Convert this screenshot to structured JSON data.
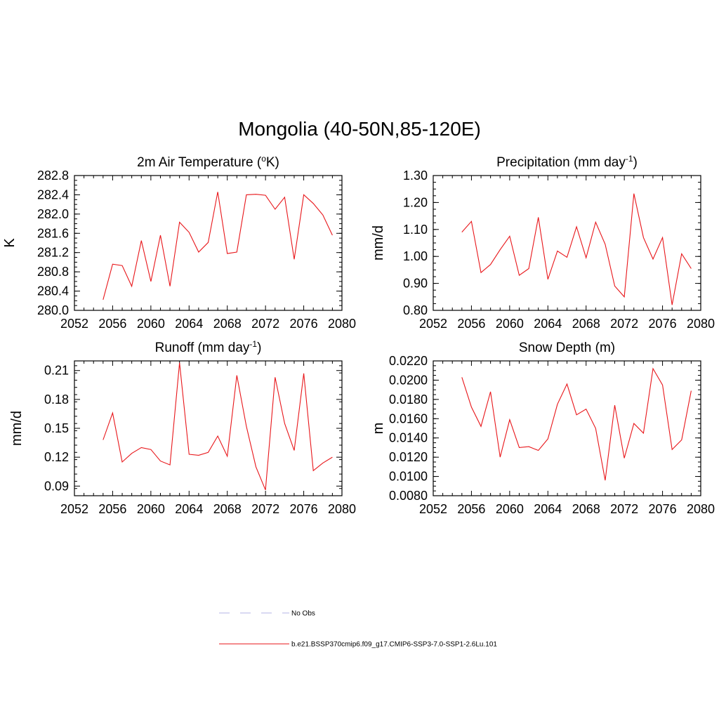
{
  "title": "Mongolia (40-50N,85-120E)",
  "chart_data": [
    {
      "type": "line",
      "title": "2m Air Temperature (°K)",
      "title_parts": {
        "pre": "2m Air Temperature (",
        "sup": "o",
        "post": "K)"
      },
      "ylabel": "K",
      "xlim": [
        2052,
        2080
      ],
      "ylim": [
        280.0,
        282.8
      ],
      "x_ticks": [
        "2052",
        "2056",
        "2060",
        "2064",
        "2068",
        "2072",
        "2076",
        "2080"
      ],
      "y_ticks": [
        "280.0",
        "280.4",
        "280.8",
        "281.2",
        "281.6",
        "282.0",
        "282.4",
        "282.8"
      ],
      "x": [
        2055,
        2056,
        2057,
        2058,
        2059,
        2060,
        2061,
        2062,
        2063,
        2064,
        2065,
        2066,
        2067,
        2068,
        2069,
        2070,
        2071,
        2072,
        2073,
        2074,
        2075,
        2076,
        2077,
        2078,
        2079
      ],
      "series": [
        {
          "color": "#e8161a",
          "values": [
            280.22,
            280.96,
            280.93,
            280.5,
            281.45,
            280.6,
            281.56,
            280.5,
            281.83,
            281.62,
            281.21,
            281.41,
            282.46,
            281.18,
            281.21,
            282.4,
            282.41,
            282.39,
            282.1,
            282.35,
            281.06,
            282.4,
            282.22,
            281.98,
            281.56
          ]
        }
      ]
    },
    {
      "type": "line",
      "title": "Precipitation (mm day-1)",
      "title_parts": {
        "pre": "Precipitation (mm day",
        "sup": "-1",
        "post": ")"
      },
      "ylabel": "mm/d",
      "xlim": [
        2052,
        2080
      ],
      "ylim": [
        0.8,
        1.3
      ],
      "x_ticks": [
        "2052",
        "2056",
        "2060",
        "2064",
        "2068",
        "2072",
        "2076",
        "2080"
      ],
      "y_ticks": [
        "0.80",
        "0.90",
        "1.00",
        "1.10",
        "1.20",
        "1.30"
      ],
      "x": [
        2055,
        2056,
        2057,
        2058,
        2059,
        2060,
        2061,
        2062,
        2063,
        2064,
        2065,
        2066,
        2067,
        2068,
        2069,
        2070,
        2071,
        2072,
        2073,
        2074,
        2075,
        2076,
        2077,
        2078,
        2079
      ],
      "series": [
        {
          "color": "#e8161a",
          "values": [
            1.09,
            1.13,
            0.94,
            0.97,
            1.025,
            1.075,
            0.93,
            0.955,
            1.145,
            0.915,
            1.02,
            0.997,
            1.11,
            0.995,
            1.127,
            1.045,
            0.89,
            0.85,
            1.233,
            1.07,
            0.99,
            1.07,
            0.82,
            1.01,
            0.955
          ]
        }
      ]
    },
    {
      "type": "line",
      "title": "Runoff (mm day-1)",
      "title_parts": {
        "pre": "Runoff (mm day",
        "sup": "-1",
        "post": ")"
      },
      "ylabel": "mm/d",
      "xlim": [
        2052,
        2080
      ],
      "ylim": [
        0.08,
        0.22
      ],
      "x_ticks": [
        "2052",
        "2056",
        "2060",
        "2064",
        "2068",
        "2072",
        "2076",
        "2080"
      ],
      "y_ticks": [
        "0.09",
        "0.12",
        "0.15",
        "0.18",
        "0.21"
      ],
      "y_tick_values": [
        0.09,
        0.12,
        0.15,
        0.18,
        0.21
      ],
      "x": [
        2055,
        2056,
        2057,
        2058,
        2059,
        2060,
        2061,
        2062,
        2063,
        2064,
        2065,
        2066,
        2067,
        2068,
        2069,
        2070,
        2071,
        2072,
        2073,
        2074,
        2075,
        2076,
        2077,
        2078,
        2079
      ],
      "series": [
        {
          "color": "#e8161a",
          "values": [
            0.138,
            0.166,
            0.115,
            0.124,
            0.13,
            0.128,
            0.116,
            0.112,
            0.218,
            0.123,
            0.122,
            0.125,
            0.142,
            0.121,
            0.205,
            0.152,
            0.11,
            0.086,
            0.203,
            0.155,
            0.127,
            0.207,
            0.106,
            0.114,
            0.12
          ]
        }
      ]
    },
    {
      "type": "line",
      "title": "Snow Depth (m)",
      "title_parts": {
        "pre": "Snow Depth (m)",
        "sup": "",
        "post": ""
      },
      "ylabel": "m",
      "xlim": [
        2052,
        2080
      ],
      "ylim": [
        0.008,
        0.022
      ],
      "x_ticks": [
        "2052",
        "2056",
        "2060",
        "2064",
        "2068",
        "2072",
        "2076",
        "2080"
      ],
      "y_ticks": [
        "0.0080",
        "0.0100",
        "0.0120",
        "0.0140",
        "0.0160",
        "0.0180",
        "0.0200",
        "0.0220"
      ],
      "x": [
        2055,
        2056,
        2057,
        2058,
        2059,
        2060,
        2061,
        2062,
        2063,
        2064,
        2065,
        2066,
        2067,
        2068,
        2069,
        2070,
        2071,
        2072,
        2073,
        2074,
        2075,
        2076,
        2077,
        2078,
        2079
      ],
      "series": [
        {
          "color": "#e8161a",
          "values": [
            0.0203,
            0.0172,
            0.0152,
            0.0188,
            0.012,
            0.0159,
            0.013,
            0.0131,
            0.0127,
            0.0139,
            0.0175,
            0.0196,
            0.0164,
            0.017,
            0.015,
            0.0096,
            0.0174,
            0.0119,
            0.0155,
            0.0145,
            0.0212,
            0.0195,
            0.0128,
            0.0138,
            0.0189
          ]
        }
      ]
    }
  ],
  "legend": [
    {
      "label": "No Obs",
      "style": "dashed",
      "color": "#b4b4e6"
    },
    {
      "label": "b.e21.BSSP370cmip6.f09_g17.CMIP6-SSP3-7.0-SSP1-2.6Lu.101",
      "style": "solid",
      "color": "#e8161a"
    }
  ]
}
